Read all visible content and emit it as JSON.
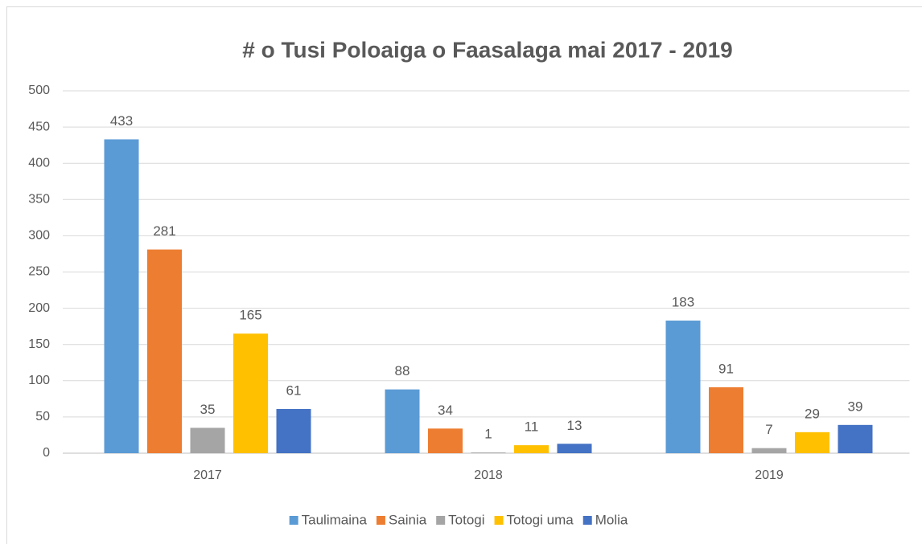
{
  "chart_data": {
    "type": "bar",
    "title": "# o Tusi Poloaiga o Faasalaga mai 2017 - 2019",
    "categories": [
      "2017",
      "2018",
      "2019"
    ],
    "series": [
      {
        "name": "Taulimaina",
        "color": "#5b9bd5",
        "values": [
          433,
          88,
          183
        ]
      },
      {
        "name": "Sainia",
        "color": "#ed7d31",
        "values": [
          281,
          34,
          91
        ]
      },
      {
        "name": "Totogi",
        "color": "#a5a5a5",
        "values": [
          35,
          1,
          7
        ]
      },
      {
        "name": "Totogi uma",
        "color": "#ffc000",
        "values": [
          165,
          11,
          29
        ]
      },
      {
        "name": "Molia",
        "color": "#4472c4",
        "values": [
          61,
          13,
          39
        ]
      }
    ],
    "ylim": [
      0,
      500
    ],
    "yticks": [
      0,
      50,
      100,
      150,
      200,
      250,
      300,
      350,
      400,
      450,
      500
    ],
    "grid": true,
    "legend": "bottom"
  }
}
